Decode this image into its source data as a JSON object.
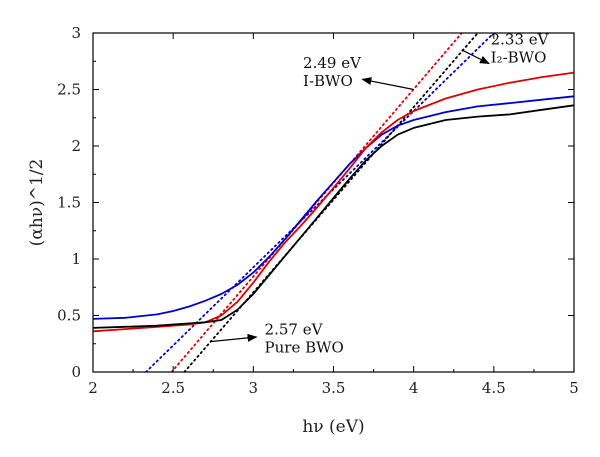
{
  "chart_data": {
    "type": "line",
    "xlabel": "hν (eV)",
    "ylabel": "(αhν)^1/2",
    "xlim": [
      2,
      5
    ],
    "ylim": [
      0,
      3
    ],
    "xticks": [
      2,
      2.5,
      3,
      3.5,
      4,
      4.5,
      5
    ],
    "yticks": [
      0,
      0.5,
      1,
      1.5,
      2,
      2.5,
      3
    ],
    "grid": false,
    "series": [
      {
        "color": "#0000cc",
        "values": [
          [
            2.0,
            0.47
          ],
          [
            2.2,
            0.48
          ],
          [
            2.4,
            0.51
          ],
          [
            2.5,
            0.54
          ],
          [
            2.6,
            0.58
          ],
          [
            2.7,
            0.63
          ],
          [
            2.8,
            0.69
          ],
          [
            2.9,
            0.77
          ],
          [
            3.0,
            0.88
          ],
          [
            3.1,
            1.02
          ],
          [
            3.2,
            1.18
          ],
          [
            3.3,
            1.35
          ],
          [
            3.4,
            1.52
          ],
          [
            3.5,
            1.68
          ],
          [
            3.6,
            1.84
          ],
          [
            3.7,
            1.98
          ],
          [
            3.8,
            2.1
          ],
          [
            3.9,
            2.18
          ],
          [
            4.0,
            2.23
          ],
          [
            4.2,
            2.3
          ],
          [
            4.4,
            2.35
          ],
          [
            4.6,
            2.38
          ],
          [
            4.8,
            2.41
          ],
          [
            5.0,
            2.44
          ]
        ]
      },
      {
        "color": "#dd0000",
        "values": [
          [
            2.0,
            0.36
          ],
          [
            2.2,
            0.38
          ],
          [
            2.4,
            0.4
          ],
          [
            2.6,
            0.42
          ],
          [
            2.7,
            0.44
          ],
          [
            2.8,
            0.5
          ],
          [
            2.9,
            0.62
          ],
          [
            3.0,
            0.79
          ],
          [
            3.1,
            0.98
          ],
          [
            3.2,
            1.15
          ],
          [
            3.3,
            1.3
          ],
          [
            3.4,
            1.46
          ],
          [
            3.5,
            1.63
          ],
          [
            3.6,
            1.8
          ],
          [
            3.7,
            1.98
          ],
          [
            3.8,
            2.12
          ],
          [
            3.9,
            2.23
          ],
          [
            4.0,
            2.31
          ],
          [
            4.2,
            2.42
          ],
          [
            4.4,
            2.5
          ],
          [
            4.6,
            2.56
          ],
          [
            4.8,
            2.61
          ],
          [
            5.0,
            2.65
          ]
        ]
      },
      {
        "color": "#000000",
        "values": [
          [
            2.0,
            0.39
          ],
          [
            2.2,
            0.4
          ],
          [
            2.4,
            0.41
          ],
          [
            2.6,
            0.43
          ],
          [
            2.7,
            0.44
          ],
          [
            2.8,
            0.46
          ],
          [
            2.9,
            0.55
          ],
          [
            3.0,
            0.69
          ],
          [
            3.1,
            0.86
          ],
          [
            3.2,
            1.03
          ],
          [
            3.3,
            1.2
          ],
          [
            3.4,
            1.37
          ],
          [
            3.5,
            1.54
          ],
          [
            3.6,
            1.71
          ],
          [
            3.7,
            1.87
          ],
          [
            3.8,
            2.0
          ],
          [
            3.9,
            2.1
          ],
          [
            4.0,
            2.16
          ],
          [
            4.2,
            2.23
          ],
          [
            4.4,
            2.26
          ],
          [
            4.6,
            2.28
          ],
          [
            4.8,
            2.32
          ],
          [
            5.0,
            2.36
          ]
        ]
      }
    ],
    "fit_lines": [
      {
        "color": "#0000cc",
        "points": [
          [
            2.33,
            0
          ],
          [
            4.5,
            3
          ]
        ]
      },
      {
        "color": "#dd0000",
        "points": [
          [
            2.49,
            0
          ],
          [
            4.3,
            3
          ]
        ]
      },
      {
        "color": "#000000",
        "points": [
          [
            2.57,
            0
          ],
          [
            4.4,
            3
          ]
        ]
      }
    ],
    "annotations": [
      {
        "lines": [
          "2.49 eV",
          "I-BWO"
        ],
        "arrow_from": [
          4.0,
          2.5
        ],
        "arrow_to": [
          3.68,
          2.59
        ]
      },
      {
        "lines": [
          "2.33 eV",
          "I₂-BWO"
        ],
        "arrow_from": [
          4.3,
          2.85
        ],
        "arrow_to": [
          4.47,
          2.73
        ]
      },
      {
        "lines": [
          "2.57 eV",
          "Pure BWO"
        ],
        "arrow_from": [
          2.74,
          0.27
        ],
        "arrow_to": [
          3.02,
          0.31
        ]
      }
    ]
  }
}
